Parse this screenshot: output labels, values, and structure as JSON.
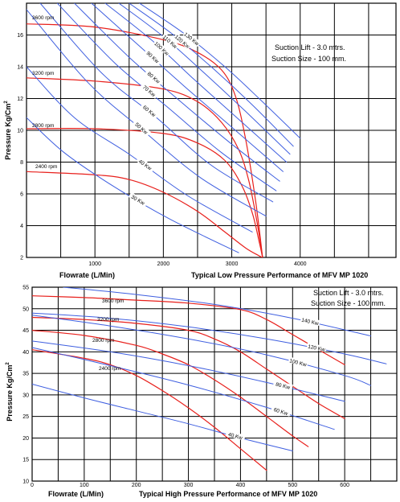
{
  "colors": {
    "rpm_curve": "#e8201c",
    "power_curve": "#3f5fe0",
    "grid": "#000000",
    "frame": "#000000"
  },
  "chart_data": [
    {
      "type": "line",
      "title": "Typical Low Pressure Performance of  MFV MP 1020",
      "xlabel": "Flowrate (L/Min)",
      "ylabel": "Pressure Kg/Cm",
      "ylabel_sup": "2",
      "xlim": [
        0,
        5400
      ],
      "ylim": [
        2,
        18
      ],
      "x_ticks": [
        1000,
        2000,
        3000,
        4000
      ],
      "y_ticks": [
        2,
        4,
        6,
        8,
        10,
        12,
        14,
        16
      ],
      "grid": true,
      "notes": [
        "Suction Lift - 3.0 mtrs.",
        "Suction Size - 100 mm."
      ],
      "series": [
        {
          "name": "3600 rpm",
          "kind": "rpm",
          "x": [
            0,
            1000,
            2000,
            2500,
            2850,
            3050,
            3200,
            3350,
            3450
          ],
          "y": [
            16.7,
            16.5,
            15.7,
            14.9,
            13.8,
            12.2,
            9.5,
            5.5,
            2.0
          ]
        },
        {
          "name": "3200 rpm",
          "kind": "rpm",
          "x": [
            0,
            1000,
            2000,
            2500,
            2850,
            3100,
            3250,
            3370,
            3450
          ],
          "y": [
            13.3,
            13.1,
            12.6,
            11.8,
            10.5,
            8.8,
            6.8,
            4.2,
            2.0
          ]
        },
        {
          "name": "2800 rpm",
          "kind": "rpm",
          "x": [
            0,
            1000,
            2000,
            2500,
            2900,
            3150,
            3300,
            3400,
            3450
          ],
          "y": [
            10.1,
            10.1,
            9.8,
            9.2,
            8.1,
            6.5,
            4.8,
            3.0,
            2.0
          ]
        },
        {
          "name": "2400 rpm",
          "kind": "rpm",
          "x": [
            0,
            1000,
            1500,
            2000,
            2500,
            2900,
            3200,
            3400,
            3450
          ],
          "y": [
            7.4,
            7.2,
            6.9,
            6.1,
            4.9,
            3.6,
            2.6,
            2.1,
            2.0
          ]
        },
        {
          "name": "130 Kw",
          "kind": "power",
          "x": [
            1650,
            2300,
            2900,
            3400,
            4000
          ],
          "y": [
            18.0,
            16.1,
            14.0,
            12.0,
            9.5
          ]
        },
        {
          "name": "120 Kw",
          "kind": "power",
          "x": [
            1500,
            2150,
            2750,
            3300,
            3900
          ],
          "y": [
            18.0,
            16.0,
            13.8,
            11.6,
            9.0
          ]
        },
        {
          "name": "110 Kw",
          "kind": "power",
          "x": [
            1350,
            2000,
            2600,
            3200,
            3850
          ],
          "y": [
            18.0,
            15.9,
            13.6,
            11.2,
            8.5
          ]
        },
        {
          "name": "100 Kw",
          "kind": "power",
          "x": [
            1150,
            1850,
            2450,
            3100,
            3800
          ],
          "y": [
            18.0,
            15.6,
            13.2,
            10.7,
            8.0
          ]
        },
        {
          "name": "90 Kw",
          "kind": "power",
          "x": [
            950,
            1650,
            2300,
            3000,
            3750
          ],
          "y": [
            18.0,
            15.3,
            12.8,
            10.2,
            7.4
          ]
        },
        {
          "name": "80 Kw",
          "kind": "power",
          "x": [
            700,
            1500,
            2200,
            2950,
            3700
          ],
          "y": [
            18.0,
            14.6,
            12.0,
            9.3,
            6.8
          ]
        },
        {
          "name": "70 Kw",
          "kind": "power",
          "x": [
            450,
            1300,
            2050,
            2850,
            3650
          ],
          "y": [
            18.0,
            14.2,
            11.5,
            8.6,
            6.2
          ]
        },
        {
          "name": "60 Kw",
          "kind": "power",
          "x": [
            200,
            1100,
            1900,
            2700,
            3600
          ],
          "y": [
            18.0,
            13.6,
            10.8,
            7.8,
            5.5
          ]
        },
        {
          "name": "50 Kw",
          "kind": "power",
          "x": [
            0,
            900,
            1700,
            2550,
            3500
          ],
          "y": [
            17.6,
            13.0,
            10.0,
            7.0,
            4.6
          ]
        },
        {
          "name": "40 Kw",
          "kind": "power",
          "x": [
            0,
            700,
            1500,
            2350,
            3300
          ],
          "y": [
            14.0,
            10.8,
            8.5,
            5.9,
            3.6
          ]
        },
        {
          "name": "30 Kw",
          "kind": "power",
          "x": [
            0,
            550,
            1300,
            2100,
            3100
          ],
          "y": [
            10.8,
            8.6,
            6.4,
            4.4,
            2.3
          ]
        }
      ]
    },
    {
      "type": "line",
      "title": "Typical High Pressure Performance of  MFV MP 1020",
      "xlabel": "Flowrate (L/Min)",
      "ylabel": "Pressure Kg/Cm",
      "ylabel_sup": "2",
      "xlim": [
        0,
        700
      ],
      "ylim": [
        10,
        55
      ],
      "x_ticks": [
        0,
        100,
        200,
        300,
        400,
        500,
        600
      ],
      "y_ticks": [
        10,
        15,
        20,
        25,
        30,
        35,
        40,
        45,
        50,
        55
      ],
      "grid": true,
      "notes": [
        "Suction Lift - 3.0 mtrs.",
        "Suction Size - 100 mm."
      ],
      "series": [
        {
          "name": "3600 rpm",
          "kind": "rpm",
          "x": [
            0,
            100,
            200,
            300,
            400,
            450,
            500,
            550,
            600
          ],
          "y": [
            53.0,
            52.6,
            52.0,
            51.3,
            49.8,
            47.5,
            44.0,
            40.5,
            37.0
          ]
        },
        {
          "name": "3200 rpm",
          "kind": "rpm",
          "x": [
            0,
            100,
            200,
            300,
            350,
            400,
            450,
            500,
            550,
            600
          ],
          "y": [
            48.0,
            47.5,
            46.6,
            45.0,
            43.0,
            40.0,
            36.0,
            32.0,
            28.0,
            24.5
          ]
        },
        {
          "name": "2800 rpm",
          "kind": "rpm",
          "x": [
            0,
            100,
            200,
            250,
            300,
            350,
            400,
            450,
            500,
            530
          ],
          "y": [
            45.0,
            43.8,
            41.5,
            39.5,
            37.0,
            33.5,
            29.5,
            25.0,
            20.5,
            18.0
          ]
        },
        {
          "name": "2400 rpm",
          "kind": "rpm",
          "x": [
            0,
            100,
            150,
            200,
            250,
            300,
            350,
            400,
            450
          ],
          "y": [
            40.5,
            38.5,
            37.0,
            34.5,
            31.0,
            27.0,
            22.5,
            17.5,
            12.5
          ]
        },
        {
          "name": "140 Kw",
          "kind": "power",
          "x": [
            60,
            200,
            350,
            500,
            650
          ],
          "y": [
            55.0,
            53.3,
            51.0,
            47.8,
            43.7
          ]
        },
        {
          "name": "120 Kw",
          "kind": "power",
          "x": [
            0,
            150,
            300,
            450,
            600,
            680
          ],
          "y": [
            49.0,
            47.8,
            45.8,
            43.0,
            39.5,
            37.2
          ]
        },
        {
          "name": "100 Kw",
          "kind": "power",
          "x": [
            0,
            150,
            300,
            450,
            600,
            650
          ],
          "y": [
            48.5,
            46.0,
            43.0,
            39.3,
            34.5,
            32.2
          ]
        },
        {
          "name": "80 Kw",
          "kind": "power",
          "x": [
            0,
            150,
            300,
            450,
            600
          ],
          "y": [
            42.5,
            40.0,
            36.8,
            32.9,
            28.5
          ]
        },
        {
          "name": "60 Kw",
          "kind": "power",
          "x": [
            0,
            150,
            300,
            450,
            580
          ],
          "y": [
            41.0,
            36.8,
            32.3,
            27.1,
            22.0
          ]
        },
        {
          "name": "40 Kw",
          "kind": "power",
          "x": [
            0,
            100,
            200,
            300,
            400,
            500
          ],
          "y": [
            32.5,
            29.3,
            26.3,
            23.3,
            20.0,
            17.0
          ]
        }
      ]
    }
  ]
}
